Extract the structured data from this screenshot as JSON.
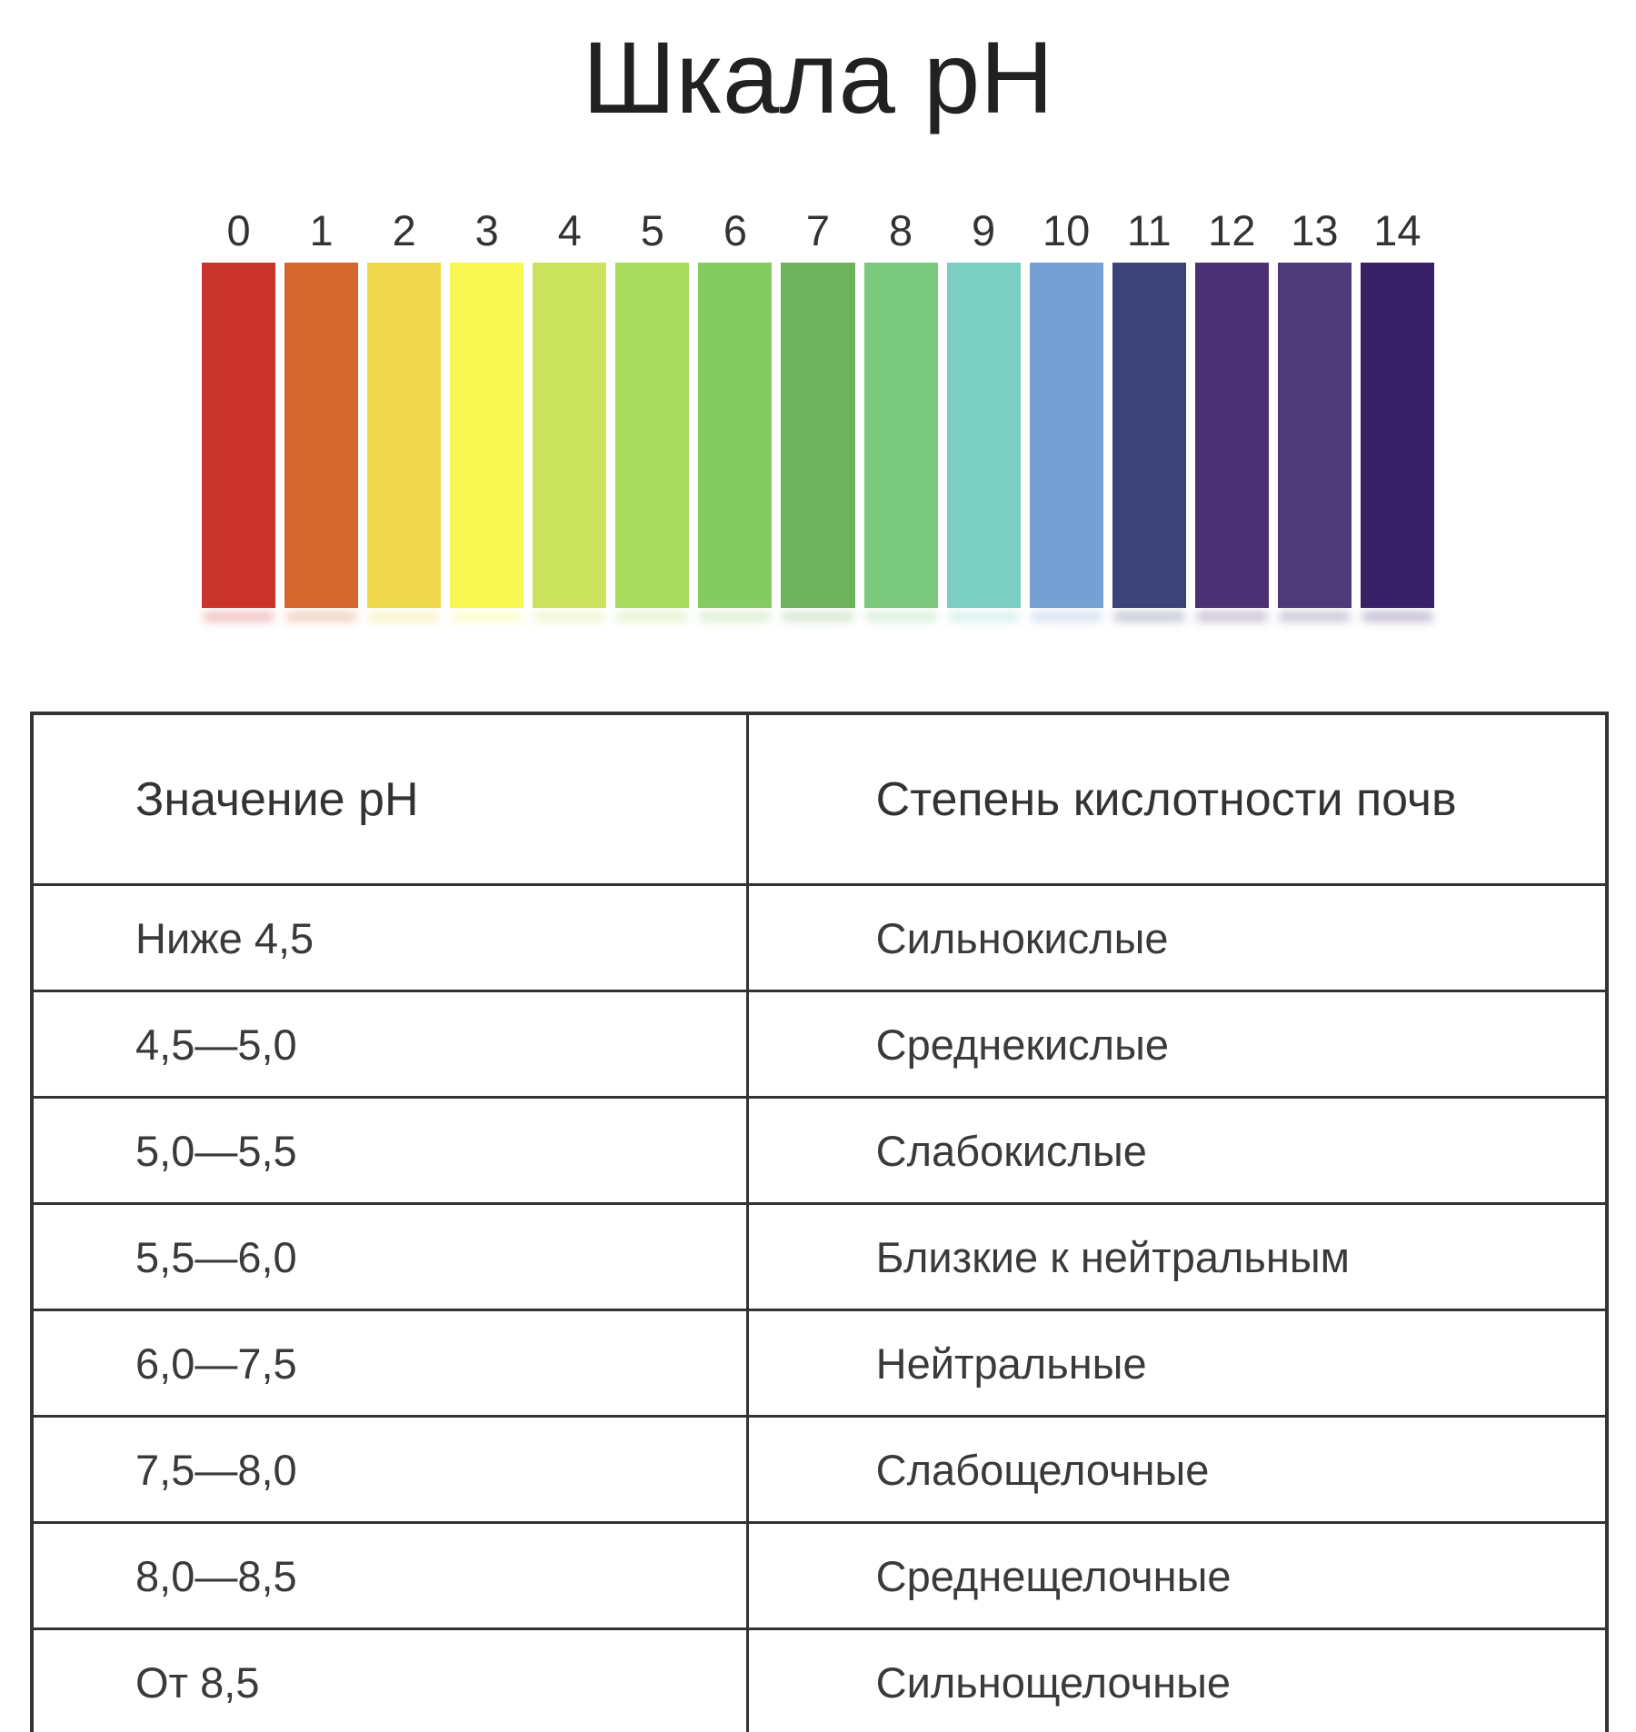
{
  "title": "Шкала pH",
  "scale": {
    "items": [
      {
        "label": "0",
        "color": "#cb342c"
      },
      {
        "label": "1",
        "color": "#d5672e"
      },
      {
        "label": "2",
        "color": "#efd84c"
      },
      {
        "label": "3",
        "color": "#f9f751"
      },
      {
        "label": "4",
        "color": "#cce35e"
      },
      {
        "label": "5",
        "color": "#a7db5e"
      },
      {
        "label": "6",
        "color": "#84cc62"
      },
      {
        "label": "7",
        "color": "#6fb25e"
      },
      {
        "label": "8",
        "color": "#7bc97e"
      },
      {
        "label": "9",
        "color": "#7bcfc2"
      },
      {
        "label": "10",
        "color": "#74a0d3"
      },
      {
        "label": "11",
        "color": "#3c4377"
      },
      {
        "label": "12",
        "color": "#4b3274"
      },
      {
        "label": "13",
        "color": "#4d3a78"
      },
      {
        "label": "14",
        "color": "#392168"
      }
    ]
  },
  "table": {
    "headers": [
      "Значение pH",
      "Степень кислотности почв"
    ],
    "rows": [
      {
        "ph": "Ниже 4,5",
        "degree": "Сильнокислые"
      },
      {
        "ph": "4,5—5,0",
        "degree": "Среднекислые"
      },
      {
        "ph": "5,0—5,5",
        "degree": "Слабокислые"
      },
      {
        "ph": "5,5—6,0",
        "degree": "Близкие к нейтральным"
      },
      {
        "ph": "6,0—7,5",
        "degree": "Нейтральные"
      },
      {
        "ph": "7,5—8,0",
        "degree": "Слабощелочные"
      },
      {
        "ph": "8,0—8,5",
        "degree": "Среднещелочные"
      },
      {
        "ph": "От 8,5",
        "degree": "Сильнощелочные"
      }
    ]
  }
}
